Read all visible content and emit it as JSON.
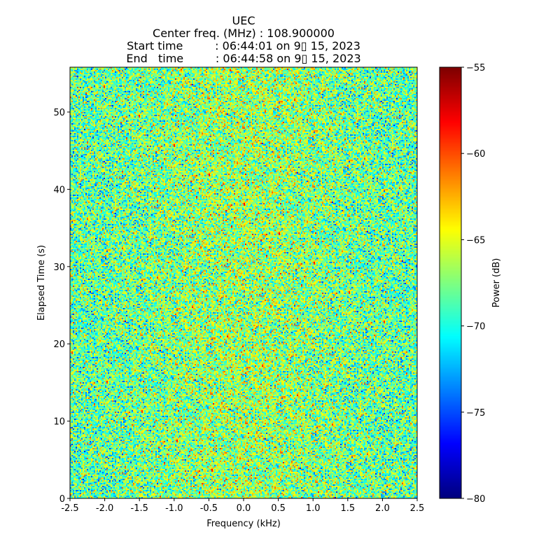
{
  "chart_data": {
    "type": "heatmap",
    "title": [
      "UEC",
      "Center freq. (MHz) : 108.900000",
      "Start time         : 06:44:01 on 9▯ 15, 2023",
      "End   time         : 06:44:58 on 9▯ 15, 2023"
    ],
    "xlabel": "Frequency (kHz)",
    "ylabel": "Elapsed Time (s)",
    "xlim": [
      -2.5,
      2.5
    ],
    "ylim": [
      0,
      55.8
    ],
    "xticks": [
      "-2.5",
      "-2.0",
      "-1.5",
      "-1.0",
      "-0.5",
      "0.0",
      "0.5",
      "1.0",
      "1.5",
      "2.0",
      "2.5"
    ],
    "xtick_values": [
      -2.5,
      -2.0,
      -1.5,
      -1.0,
      -0.5,
      0.0,
      0.5,
      1.0,
      1.5,
      2.0,
      2.5
    ],
    "yticks": [
      "0",
      "10",
      "20",
      "30",
      "40",
      "50"
    ],
    "ytick_values": [
      0,
      10,
      20,
      30,
      40,
      50
    ],
    "colorbar": {
      "label": "Power (dB)",
      "range": [
        -80,
        -55
      ],
      "ticks": [
        "−80",
        "−75",
        "−70",
        "−65",
        "−60",
        "−55"
      ],
      "tick_values": [
        -80,
        -75,
        -70,
        -65,
        -60,
        -55
      ],
      "colormap": "jet"
    },
    "values_description": "noise-like power, approx mean -68 dB, std 3 dB, slightly higher near 0 kHz",
    "grid": false
  }
}
